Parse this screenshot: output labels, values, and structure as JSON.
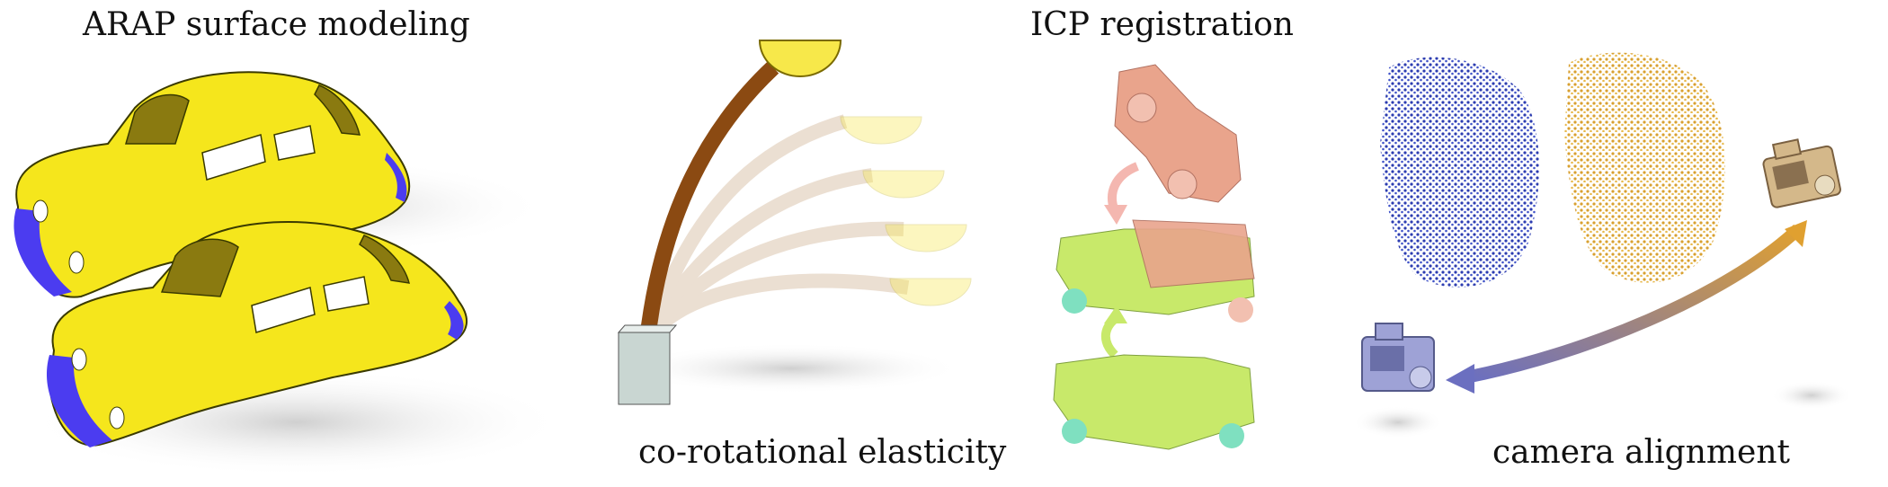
{
  "captions": {
    "arap": "ARAP surface modeling",
    "elasticity": "co-rotational elasticity",
    "icp": "ICP registration",
    "camera": "camera alignment"
  },
  "colors": {
    "car_body": "#f5e61c",
    "car_outline": "#3a3a00",
    "car_handles": "#4b3cf0",
    "window": "#8a7a10",
    "rod": "#8b4a12",
    "bowl": "#f7e84a",
    "base": "#c9d6d2",
    "jeep_source": "#e9a48c",
    "jeep_target": "#c8e96a",
    "jeep_teal": "#7fe0c0",
    "points_blue": "#2c3cb0",
    "points_gold": "#d8a030",
    "camera": "#9ea2d6",
    "camera_target": "#d4b88a",
    "arrow_start": "#6b6fc0",
    "arrow_end": "#e0a030"
  },
  "icons": {
    "camera_a": "camera-icon",
    "camera_b": "camera-icon"
  }
}
